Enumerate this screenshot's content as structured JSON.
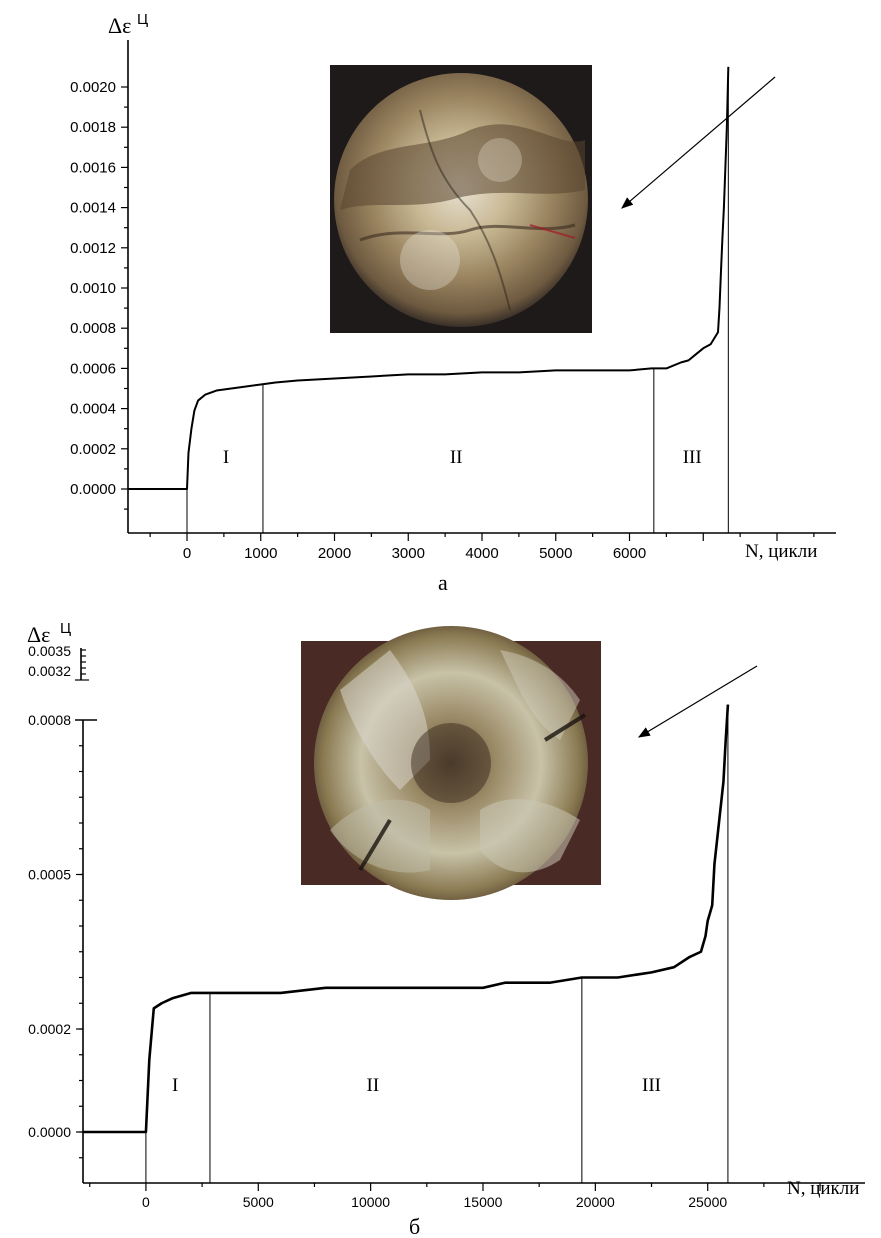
{
  "chart_data": [
    {
      "id": "a",
      "type": "line",
      "caption": "а",
      "ylabel_base": "Δε",
      "ylabel_sup": "Ц",
      "xlabel": "N, цикли",
      "xlim": [
        -800,
        8800
      ],
      "ylim": [
        -0.00025,
        0.0021
      ],
      "yticks": [
        0.0,
        0.0002,
        0.0004,
        0.0006,
        0.0008,
        0.001,
        0.0012,
        0.0014,
        0.0016,
        0.0018,
        0.002
      ],
      "ytick_labels": [
        "0.0000",
        "0.0002",
        "0.0004",
        "0.0006",
        "0.0008",
        "0.0010",
        "0.0012",
        "0.0014",
        "0.0016",
        "0.0018",
        "0.0020"
      ],
      "xticks": [
        0,
        1000,
        2000,
        3000,
        4000,
        5000,
        6000
      ],
      "xtick_labels": [
        "0",
        "1000",
        "2000",
        "3000",
        "4000",
        "5000",
        "6000"
      ],
      "series": [
        {
          "x": [
            -800,
            0,
            20,
            60,
            100,
            150,
            250,
            400,
            600,
            800,
            1000,
            1200,
            1500,
            2000,
            2500,
            3000,
            3500,
            4000,
            4500,
            5000,
            5500,
            6000,
            6300,
            6500,
            6700,
            6800,
            6900,
            7000,
            7100,
            7150,
            7200,
            7220,
            7240,
            7260,
            7280,
            7300,
            7320,
            7340
          ],
          "y": [
            0,
            0,
            0.00018,
            0.0003,
            0.00039,
            0.00044,
            0.00047,
            0.00049,
            0.0005,
            0.00051,
            0.00052,
            0.00053,
            0.00054,
            0.00055,
            0.00056,
            0.00057,
            0.00057,
            0.00058,
            0.00058,
            0.00059,
            0.00059,
            0.00059,
            0.0006,
            0.0006,
            0.00063,
            0.00064,
            0.00067,
            0.0007,
            0.00072,
            0.00075,
            0.00078,
            0.0009,
            0.00108,
            0.00125,
            0.0014,
            0.0016,
            0.0018,
            0.0021
          ]
        }
      ],
      "stage_dividers": [
        1030,
        6330,
        7340
      ],
      "stage_labels": [
        {
          "text": "I",
          "x": 530,
          "y": 0.00013
        },
        {
          "text": "II",
          "x": 3650,
          "y": 0.00013
        },
        {
          "text": "III",
          "x": 6850,
          "y": 0.00013
        }
      ],
      "inset": {
        "description_icon": "fracture-surface-photo",
        "tones": [
          "#2a2622",
          "#c9b89a",
          "#8a6f4b",
          "#e6e2d6",
          "#5b4a36"
        ]
      }
    },
    {
      "id": "b",
      "type": "line",
      "caption": "б",
      "ylabel_base": "Δε",
      "ylabel_sup": "Ц",
      "xlabel": "N, цикли",
      "xlim": [
        -2800,
        32000
      ],
      "ylim": [
        -0.0001,
        0.00083
      ],
      "yticks": [
        0.0,
        0.0002,
        0.0005,
        0.0008
      ],
      "ytick_labels": [
        "0.0000",
        "0.0002",
        "0.0005",
        "0.0008"
      ],
      "break_ticks": [
        "0.0035",
        "0.0032"
      ],
      "xticks": [
        0,
        5000,
        10000,
        15000,
        20000,
        25000
      ],
      "xtick_labels": [
        "0",
        "5000",
        "10000",
        "15000",
        "20000",
        "25000"
      ],
      "series": [
        {
          "x": [
            -2800,
            0,
            150,
            350,
            700,
            1200,
            2000,
            2800,
            4000,
            6000,
            8000,
            10000,
            12000,
            15000,
            16000,
            18000,
            19400,
            21000,
            22500,
            23500,
            24200,
            24700,
            24900,
            25000,
            25200,
            25300,
            25500,
            25700,
            25800,
            25900
          ],
          "y": [
            0,
            0,
            0.00014,
            0.00024,
            0.00025,
            0.00026,
            0.00027,
            0.00027,
            0.00027,
            0.00027,
            0.00028,
            0.00028,
            0.00028,
            0.00028,
            0.00029,
            0.00029,
            0.0003,
            0.0003,
            0.00031,
            0.00032,
            0.00034,
            0.00035,
            0.00038,
            0.00041,
            0.00044,
            0.00052,
            0.0006,
            0.00068,
            0.00076,
            0.00083
          ]
        }
      ],
      "stage_dividers": [
        2850,
        19400,
        25900
      ],
      "stage_labels": [
        {
          "text": "I",
          "x": 1300,
          "y": 8e-05
        },
        {
          "text": "II",
          "x": 10100,
          "y": 8e-05
        },
        {
          "text": "III",
          "x": 22500,
          "y": 8e-05
        }
      ],
      "inset": {
        "description_icon": "fracture-surface-photo",
        "tones": [
          "#3b2a22",
          "#b8a982",
          "#6f6a55",
          "#d8d4c6",
          "#8a6e3a"
        ]
      }
    }
  ]
}
